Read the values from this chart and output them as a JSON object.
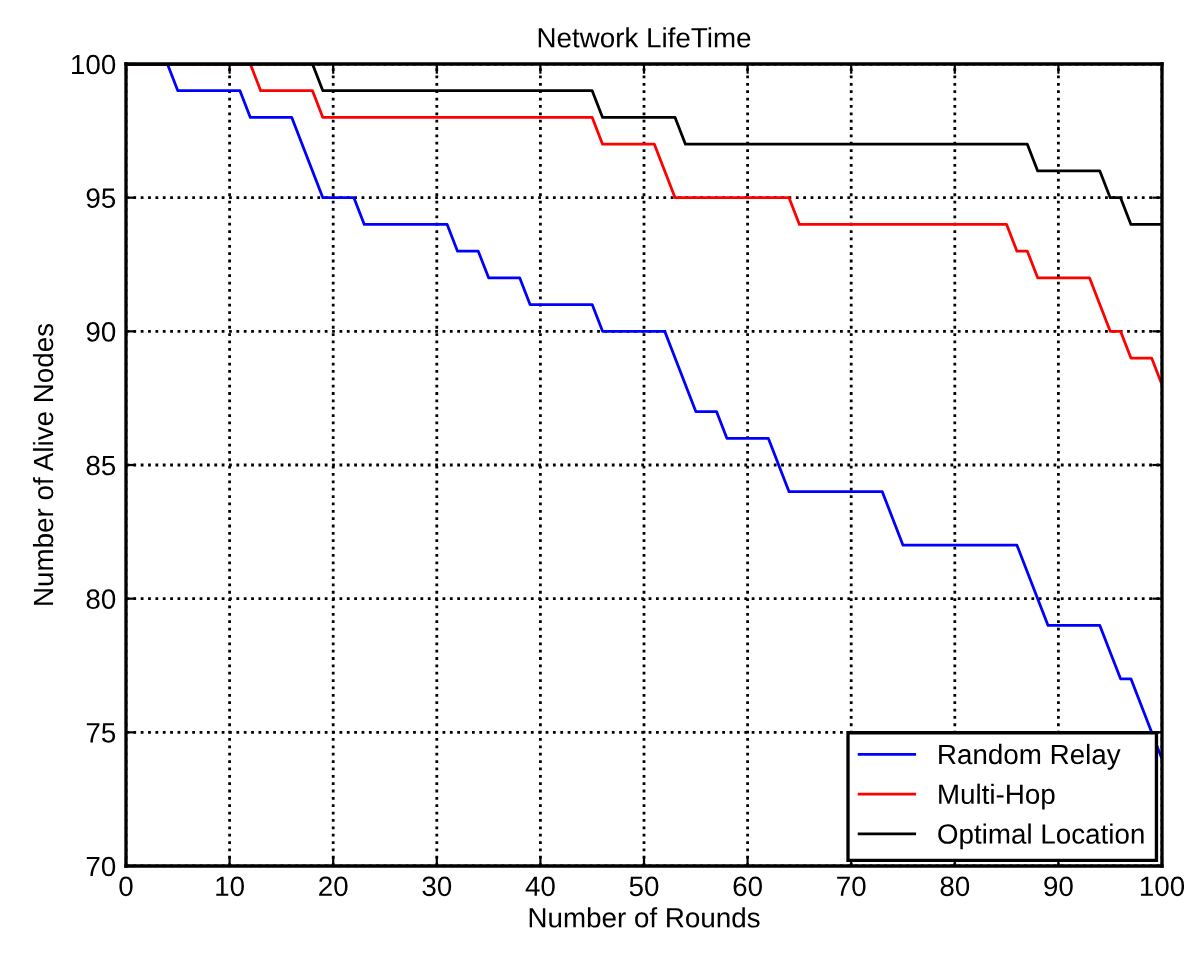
{
  "chart_data": {
    "type": "line",
    "title": "Network LifeTime",
    "xlabel": "Number of Rounds",
    "ylabel": "Number of Alive Nodes",
    "xlim": [
      0,
      100
    ],
    "ylim": [
      70,
      100
    ],
    "xticks": [
      0,
      10,
      20,
      30,
      40,
      50,
      60,
      70,
      80,
      90,
      100
    ],
    "yticks": [
      70,
      75,
      80,
      85,
      90,
      95,
      100
    ],
    "grid": true,
    "legend": "bottom right",
    "marker": "none",
    "line_style": "solid",
    "series": [
      {
        "name": "Random Relay",
        "color": "#0000ff",
        "x": [
          0,
          4,
          5,
          11,
          12,
          16,
          17,
          18,
          19,
          22,
          23,
          31,
          32,
          34,
          35,
          38,
          39,
          45,
          46,
          52,
          53,
          54,
          55,
          57,
          58,
          62,
          63,
          64,
          73,
          74,
          75,
          86,
          87,
          88,
          89,
          94,
          95,
          96,
          97,
          98,
          99,
          100
        ],
        "values": [
          100,
          100,
          99,
          99,
          98,
          98,
          97,
          96,
          95,
          95,
          94,
          94,
          93,
          93,
          92,
          92,
          91,
          91,
          90,
          90,
          89,
          88,
          87,
          87,
          86,
          86,
          85,
          84,
          84,
          83,
          82,
          82,
          81,
          80,
          79,
          79,
          78,
          77,
          77,
          76,
          75,
          74
        ]
      },
      {
        "name": "Multi-Hop",
        "color": "#ff0000",
        "x": [
          0,
          12,
          13,
          18,
          19,
          45,
          46,
          51,
          52,
          53,
          54,
          64,
          65,
          85,
          86,
          87,
          88,
          93,
          94,
          95,
          96,
          97,
          98,
          99,
          100
        ],
        "values": [
          100,
          100,
          99,
          99,
          98,
          98,
          97,
          97,
          96,
          95,
          95,
          95,
          94,
          94,
          93,
          93,
          92,
          92,
          91,
          90,
          90,
          89,
          89,
          89,
          88
        ]
      },
      {
        "name": "Optimal Location",
        "color": "#000000",
        "x": [
          0,
          18,
          19,
          45,
          46,
          53,
          54,
          87,
          88,
          94,
          95,
          96,
          97,
          100
        ],
        "values": [
          100,
          100,
          99,
          99,
          98,
          98,
          97,
          97,
          96,
          96,
          95,
          95,
          94,
          94
        ]
      }
    ]
  }
}
